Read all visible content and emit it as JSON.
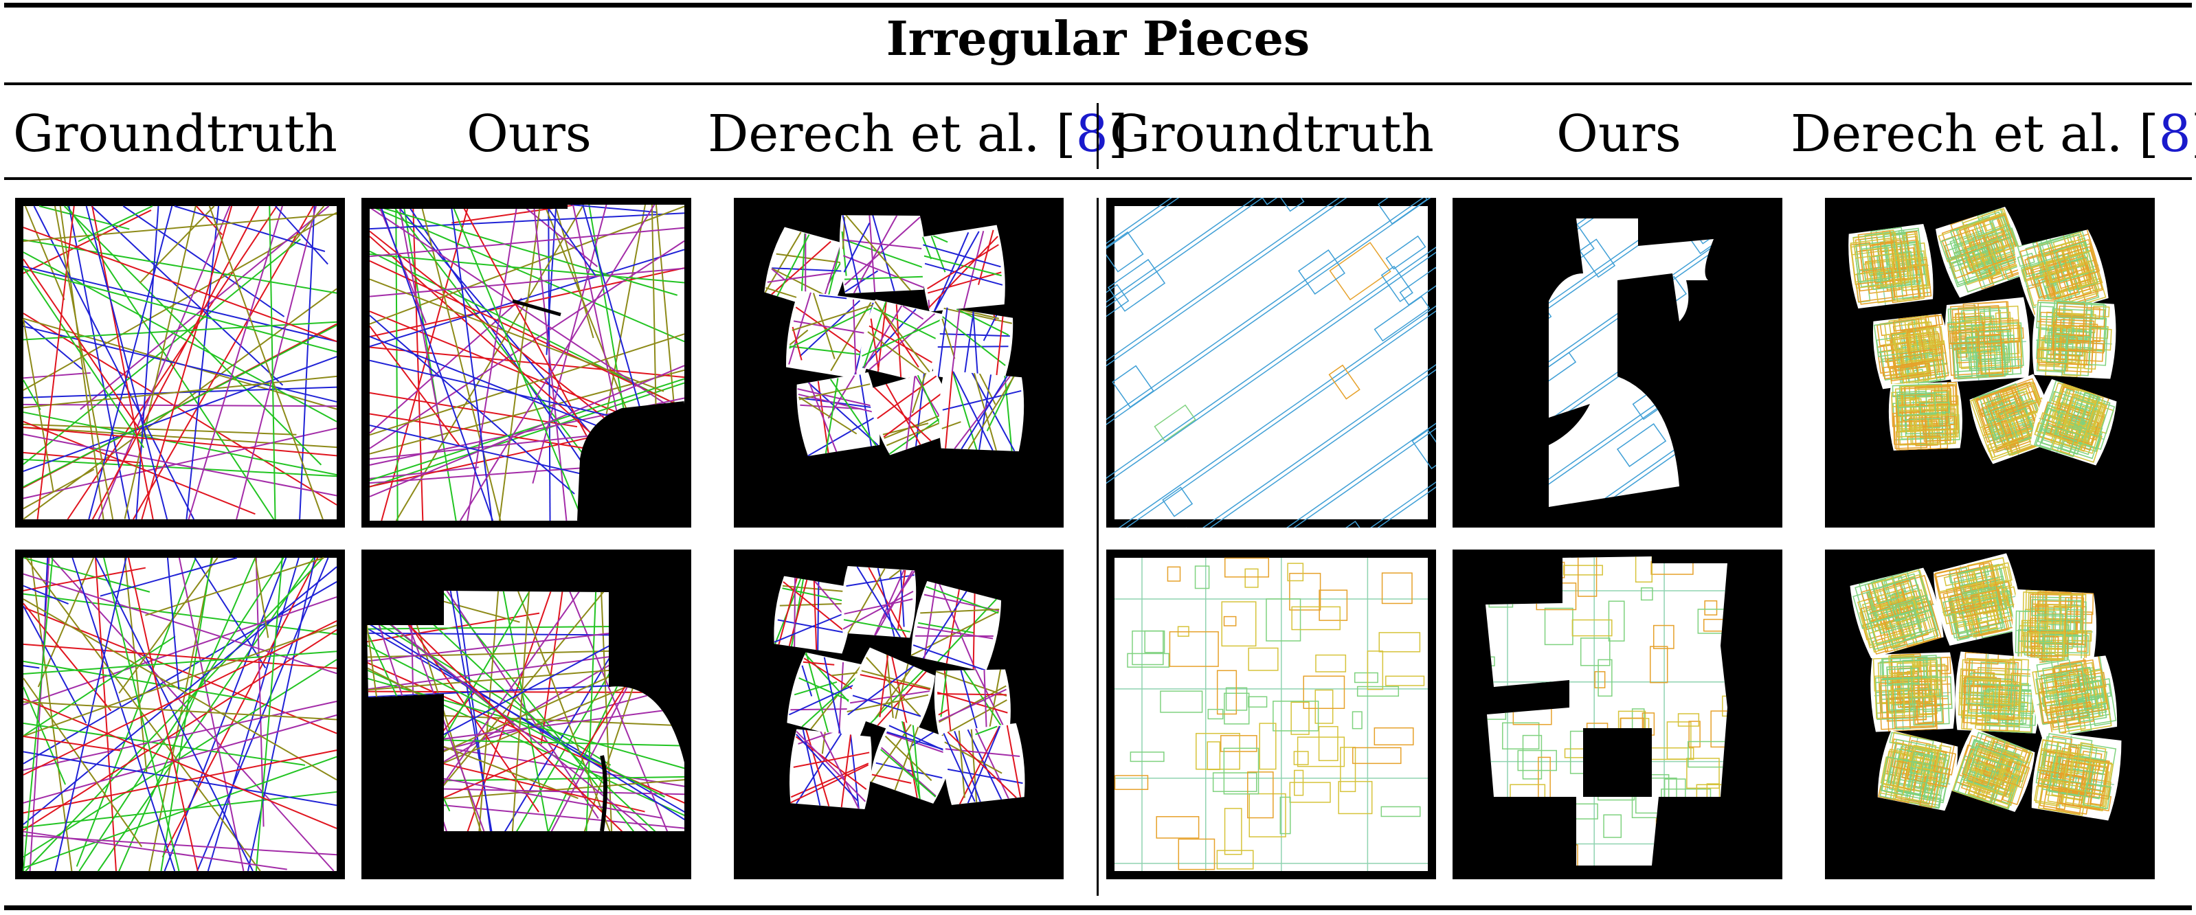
{
  "table": {
    "title": "Irregular Pieces",
    "columns": [
      {
        "label": "Groundtruth",
        "ref": ""
      },
      {
        "label": "Ours",
        "ref": ""
      },
      {
        "label": "Derech et al. [",
        "ref": "8",
        "close": "]"
      },
      {
        "label": "Groundtruth",
        "ref": ""
      },
      {
        "label": "Ours",
        "ref": ""
      },
      {
        "label": "Derech et al. [",
        "ref": "8",
        "close": "]"
      }
    ],
    "colors": {
      "accent_ref": "#1a1acc",
      "lines_palette": [
        "#e0141e",
        "#1f22d6",
        "#22c422",
        "#8d8a18",
        "#a32ca8"
      ],
      "map_palette": [
        "#3f9fd6",
        "#e6a12a",
        "#7fd27f",
        "#d6c33a"
      ]
    }
  }
}
